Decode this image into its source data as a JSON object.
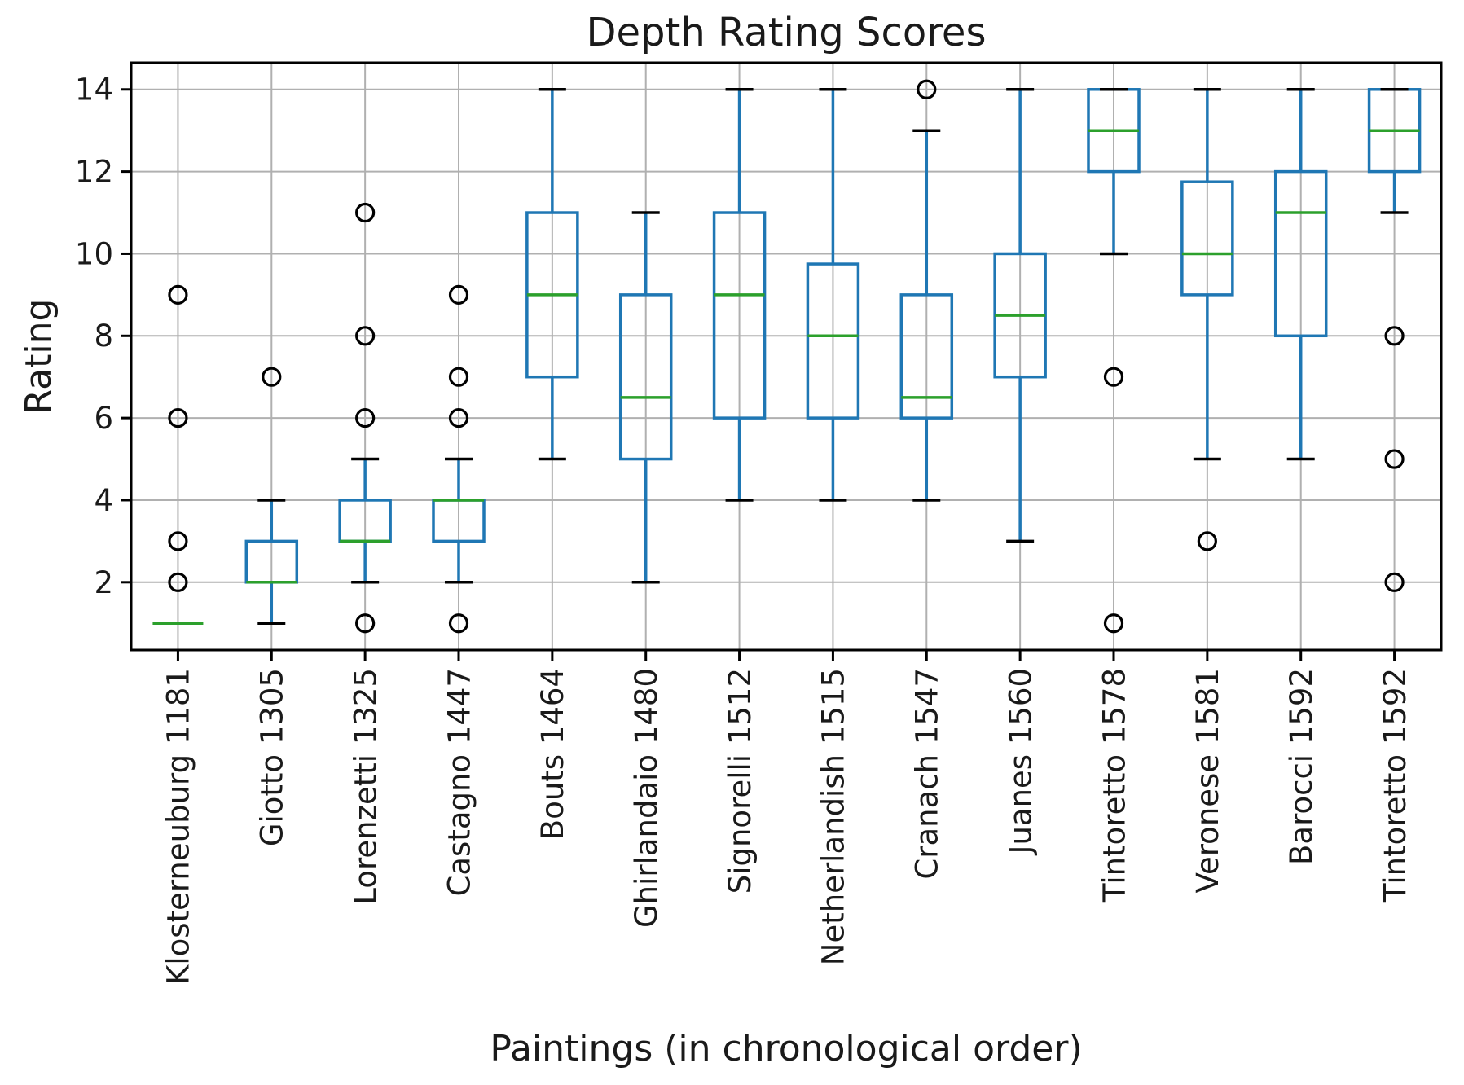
{
  "chart_data": {
    "type": "boxplot",
    "title": "Depth Rating Scores",
    "xlabel": "Paintings (in chronological order)",
    "ylabel": "Rating",
    "ylim": [
      0.35,
      14.65
    ],
    "yticks": [
      2,
      4,
      6,
      8,
      10,
      12,
      14
    ],
    "grid": true,
    "legend": "none",
    "colors": {
      "box": "#1f77b4",
      "whisker": "#1f77b4",
      "median": "#2ca02c",
      "cap": "#000000",
      "outlier_edge": "#000000",
      "grid": "#b0b0b0",
      "spine": "#000000",
      "background": "#ffffff"
    },
    "categories": [
      "Klosterneuburg 1181",
      "Giotto 1305",
      "Lorenzetti 1325",
      "Castagno 1447",
      "Bouts 1464",
      "Ghirlandaio 1480",
      "Signorelli 1512",
      "Netherlandish 1515",
      "Cranach 1547",
      "Juanes 1560",
      "Tintoretto 1578",
      "Veronese 1581",
      "Barocci 1592",
      "Tintoretto 1592"
    ],
    "boxes": [
      {
        "label": "Klosterneuburg 1181",
        "whislo": 1,
        "q1": 1,
        "med": 1,
        "q3": 1,
        "whishi": 1,
        "outliers": [
          2,
          3,
          6,
          9
        ]
      },
      {
        "label": "Giotto 1305",
        "whislo": 1,
        "q1": 2,
        "med": 2,
        "q3": 3,
        "whishi": 4,
        "outliers": [
          7
        ]
      },
      {
        "label": "Lorenzetti 1325",
        "whislo": 2,
        "q1": 3,
        "med": 3,
        "q3": 4,
        "whishi": 5,
        "outliers": [
          1,
          6,
          8,
          11
        ]
      },
      {
        "label": "Castagno 1447",
        "whislo": 2,
        "q1": 3,
        "med": 4,
        "q3": 4,
        "whishi": 5,
        "outliers": [
          1,
          6,
          7,
          9
        ]
      },
      {
        "label": "Bouts 1464",
        "whislo": 5,
        "q1": 7,
        "med": 9,
        "q3": 11,
        "whishi": 14,
        "outliers": []
      },
      {
        "label": "Ghirlandaio 1480",
        "whislo": 2,
        "q1": 5,
        "med": 6.5,
        "q3": 9,
        "whishi": 11,
        "outliers": []
      },
      {
        "label": "Signorelli 1512",
        "whislo": 4,
        "q1": 6,
        "med": 9,
        "q3": 11,
        "whishi": 14,
        "outliers": []
      },
      {
        "label": "Netherlandish 1515",
        "whislo": 4,
        "q1": 6,
        "med": 8,
        "q3": 9.75,
        "whishi": 14,
        "outliers": []
      },
      {
        "label": "Cranach 1547",
        "whislo": 4,
        "q1": 6,
        "med": 6.5,
        "q3": 9,
        "whishi": 13,
        "outliers": [
          14
        ]
      },
      {
        "label": "Juanes 1560",
        "whislo": 3,
        "q1": 7,
        "med": 8.5,
        "q3": 10,
        "whishi": 14,
        "outliers": []
      },
      {
        "label": "Tintoretto 1578",
        "whislo": 10,
        "q1": 12,
        "med": 13,
        "q3": 14,
        "whishi": 14,
        "outliers": [
          7,
          1
        ]
      },
      {
        "label": "Veronese 1581",
        "whislo": 5,
        "q1": 9,
        "med": 10,
        "q3": 11.75,
        "whishi": 14,
        "outliers": [
          3
        ]
      },
      {
        "label": "Barocci 1592",
        "whislo": 5,
        "q1": 8,
        "med": 11,
        "q3": 12,
        "whishi": 14,
        "outliers": []
      },
      {
        "label": "Tintoretto 1592",
        "whislo": 11,
        "q1": 12,
        "med": 13,
        "q3": 14,
        "whishi": 14,
        "outliers": [
          8,
          5,
          2
        ]
      }
    ]
  }
}
